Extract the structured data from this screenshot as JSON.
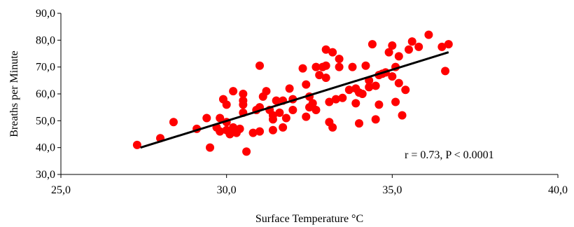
{
  "chart_data": {
    "type": "scatter",
    "title": "",
    "xlabel": "Surface Temperature °C",
    "ylabel": "Breaths per Minute",
    "xlim": [
      25,
      40
    ],
    "ylim": [
      30,
      90
    ],
    "x_ticks": [
      "25,0",
      "30,0",
      "35,0",
      "40,0"
    ],
    "y_ticks": [
      "30,0",
      "40,0",
      "50,0",
      "60,0",
      "70,0",
      "80,0",
      "90,0"
    ],
    "grid": false,
    "legend": "none",
    "annotation": "r = 0.73, P < 0.0001",
    "marker_color": "#ff0000",
    "trendline_color": "#000000",
    "trendline": {
      "x": [
        27.4,
        36.7
      ],
      "y": [
        40.0,
        75.5
      ]
    },
    "points": [
      {
        "x": 27.3,
        "y": 41.0
      },
      {
        "x": 28.0,
        "y": 43.5
      },
      {
        "x": 28.4,
        "y": 49.5
      },
      {
        "x": 29.1,
        "y": 47.0
      },
      {
        "x": 29.4,
        "y": 51.0
      },
      {
        "x": 29.5,
        "y": 40.0
      },
      {
        "x": 29.7,
        "y": 47.5
      },
      {
        "x": 29.8,
        "y": 46.0
      },
      {
        "x": 29.8,
        "y": 51.0
      },
      {
        "x": 29.9,
        "y": 58.0
      },
      {
        "x": 30.0,
        "y": 56.0
      },
      {
        "x": 30.0,
        "y": 49.5
      },
      {
        "x": 30.0,
        "y": 46.5
      },
      {
        "x": 30.1,
        "y": 45.0
      },
      {
        "x": 30.2,
        "y": 47.5
      },
      {
        "x": 30.2,
        "y": 61.0
      },
      {
        "x": 30.3,
        "y": 45.5
      },
      {
        "x": 30.4,
        "y": 47.0
      },
      {
        "x": 30.5,
        "y": 53.0
      },
      {
        "x": 30.5,
        "y": 56.0
      },
      {
        "x": 30.5,
        "y": 57.5
      },
      {
        "x": 30.5,
        "y": 60.0
      },
      {
        "x": 30.6,
        "y": 38.5
      },
      {
        "x": 30.8,
        "y": 45.5
      },
      {
        "x": 30.9,
        "y": 54.0
      },
      {
        "x": 31.0,
        "y": 46.0
      },
      {
        "x": 31.0,
        "y": 55.0
      },
      {
        "x": 31.0,
        "y": 70.5
      },
      {
        "x": 31.1,
        "y": 59.0
      },
      {
        "x": 31.2,
        "y": 61.0
      },
      {
        "x": 31.3,
        "y": 54.0
      },
      {
        "x": 31.4,
        "y": 46.5
      },
      {
        "x": 31.4,
        "y": 50.5
      },
      {
        "x": 31.4,
        "y": 52.0
      },
      {
        "x": 31.5,
        "y": 57.5
      },
      {
        "x": 31.6,
        "y": 53.0
      },
      {
        "x": 31.7,
        "y": 47.5
      },
      {
        "x": 31.7,
        "y": 57.5
      },
      {
        "x": 31.8,
        "y": 51.0
      },
      {
        "x": 31.9,
        "y": 62.0
      },
      {
        "x": 32.0,
        "y": 58.0
      },
      {
        "x": 32.0,
        "y": 54.0
      },
      {
        "x": 32.3,
        "y": 69.5
      },
      {
        "x": 32.4,
        "y": 63.5
      },
      {
        "x": 32.4,
        "y": 51.5
      },
      {
        "x": 32.5,
        "y": 55.0
      },
      {
        "x": 32.5,
        "y": 59.0
      },
      {
        "x": 32.6,
        "y": 56.5
      },
      {
        "x": 32.7,
        "y": 54.0
      },
      {
        "x": 32.7,
        "y": 70.0
      },
      {
        "x": 32.8,
        "y": 67.0
      },
      {
        "x": 32.9,
        "y": 70.0
      },
      {
        "x": 33.0,
        "y": 76.5
      },
      {
        "x": 33.0,
        "y": 70.5
      },
      {
        "x": 33.0,
        "y": 66.0
      },
      {
        "x": 33.1,
        "y": 57.0
      },
      {
        "x": 33.1,
        "y": 49.5
      },
      {
        "x": 33.2,
        "y": 75.5
      },
      {
        "x": 33.2,
        "y": 47.5
      },
      {
        "x": 33.3,
        "y": 58.0
      },
      {
        "x": 33.4,
        "y": 70.0
      },
      {
        "x": 33.4,
        "y": 73.0
      },
      {
        "x": 33.5,
        "y": 58.5
      },
      {
        "x": 33.7,
        "y": 61.5
      },
      {
        "x": 33.8,
        "y": 70.0
      },
      {
        "x": 33.9,
        "y": 62.0
      },
      {
        "x": 33.9,
        "y": 56.5
      },
      {
        "x": 34.0,
        "y": 49.0
      },
      {
        "x": 34.0,
        "y": 60.5
      },
      {
        "x": 34.1,
        "y": 60.0
      },
      {
        "x": 34.2,
        "y": 70.5
      },
      {
        "x": 34.3,
        "y": 65.0
      },
      {
        "x": 34.3,
        "y": 62.5
      },
      {
        "x": 34.4,
        "y": 78.5
      },
      {
        "x": 34.5,
        "y": 63.0
      },
      {
        "x": 34.5,
        "y": 50.5
      },
      {
        "x": 34.6,
        "y": 56.0
      },
      {
        "x": 34.6,
        "y": 67.0
      },
      {
        "x": 34.7,
        "y": 67.5
      },
      {
        "x": 34.8,
        "y": 68.0
      },
      {
        "x": 34.9,
        "y": 75.5
      },
      {
        "x": 35.0,
        "y": 78.0
      },
      {
        "x": 35.0,
        "y": 66.5
      },
      {
        "x": 35.1,
        "y": 70.0
      },
      {
        "x": 35.1,
        "y": 57.0
      },
      {
        "x": 35.2,
        "y": 64.0
      },
      {
        "x": 35.2,
        "y": 74.0
      },
      {
        "x": 35.3,
        "y": 52.0
      },
      {
        "x": 35.4,
        "y": 61.5
      },
      {
        "x": 35.5,
        "y": 76.5
      },
      {
        "x": 35.6,
        "y": 79.5
      },
      {
        "x": 35.8,
        "y": 77.5
      },
      {
        "x": 36.1,
        "y": 82.0
      },
      {
        "x": 36.5,
        "y": 77.5
      },
      {
        "x": 36.6,
        "y": 68.5
      },
      {
        "x": 36.7,
        "y": 78.5
      }
    ]
  }
}
